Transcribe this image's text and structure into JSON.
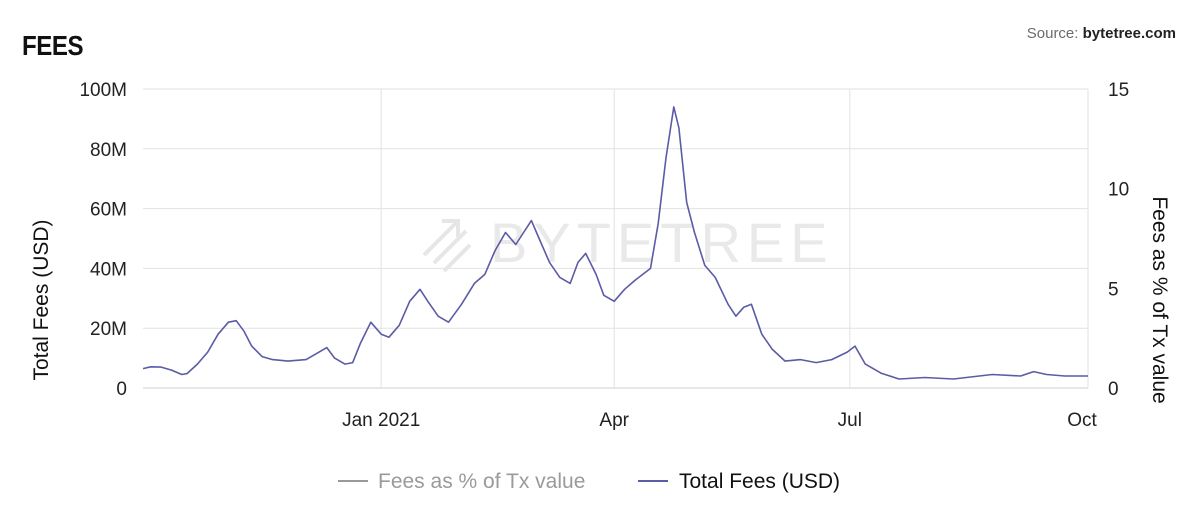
{
  "header": {
    "title": "FEES",
    "source_prefix": "Source: ",
    "source_name": "bytetree.com"
  },
  "watermark": "BYTETREE",
  "chart_data": {
    "type": "line",
    "yleft": {
      "label": "Total Fees (USD)",
      "ticks": [
        {
          "v": 0,
          "label": "0"
        },
        {
          "v": 20000000,
          "label": "20M"
        },
        {
          "v": 40000000,
          "label": "40M"
        },
        {
          "v": 60000000,
          "label": "60M"
        },
        {
          "v": 80000000,
          "label": "80M"
        },
        {
          "v": 100000000,
          "label": "100M"
        }
      ],
      "range": [
        0,
        100000000
      ]
    },
    "yright": {
      "label": "Fees as % of Tx value",
      "ticks": [
        {
          "v": 0,
          "label": "0"
        },
        {
          "v": 5,
          "label": "5"
        },
        {
          "v": 10,
          "label": "10"
        },
        {
          "v": 15,
          "label": "15"
        }
      ],
      "range": [
        0,
        15
      ]
    },
    "xaxis": {
      "range": [
        "2020-10-01",
        "2021-10-01"
      ],
      "ticks": [
        {
          "date": "2021-01-01",
          "label": "Jan 2021"
        },
        {
          "date": "2021-04-01",
          "label": "Apr"
        },
        {
          "date": "2021-07-01",
          "label": "Jul"
        },
        {
          "date": "2021-10-01",
          "label": "Oct"
        }
      ]
    },
    "grid": true,
    "legend_position": "bottom-center",
    "series": [
      {
        "name": "Fees as % of Tx value",
        "color": "#999999",
        "visible": false,
        "points": []
      },
      {
        "name": "Total Fees (USD)",
        "color": "#5b5ba6",
        "axis": "left",
        "points": [
          [
            "2020-10-01",
            6500000
          ],
          [
            "2020-10-04",
            7100000
          ],
          [
            "2020-10-08",
            7000000
          ],
          [
            "2020-10-12",
            6000000
          ],
          [
            "2020-10-16",
            4500000
          ],
          [
            "2020-10-18",
            4800000
          ],
          [
            "2020-10-22",
            8000000
          ],
          [
            "2020-10-26",
            12000000
          ],
          [
            "2020-10-30",
            18000000
          ],
          [
            "2020-11-03",
            22000000
          ],
          [
            "2020-11-06",
            22500000
          ],
          [
            "2020-11-09",
            19000000
          ],
          [
            "2020-11-12",
            14000000
          ],
          [
            "2020-11-16",
            10500000
          ],
          [
            "2020-11-20",
            9500000
          ],
          [
            "2020-11-26",
            9000000
          ],
          [
            "2020-12-03",
            9500000
          ],
          [
            "2020-12-08",
            12000000
          ],
          [
            "2020-12-11",
            13500000
          ],
          [
            "2020-12-14",
            10000000
          ],
          [
            "2020-12-18",
            8000000
          ],
          [
            "2020-12-21",
            8500000
          ],
          [
            "2020-12-24",
            15000000
          ],
          [
            "2020-12-28",
            22000000
          ],
          [
            "2021-01-01",
            18000000
          ],
          [
            "2021-01-04",
            17000000
          ],
          [
            "2021-01-08",
            21000000
          ],
          [
            "2021-01-12",
            29000000
          ],
          [
            "2021-01-16",
            33000000
          ],
          [
            "2021-01-19",
            29000000
          ],
          [
            "2021-01-23",
            24000000
          ],
          [
            "2021-01-27",
            22000000
          ],
          [
            "2021-02-01",
            28000000
          ],
          [
            "2021-02-06",
            35000000
          ],
          [
            "2021-02-10",
            38000000
          ],
          [
            "2021-02-14",
            46000000
          ],
          [
            "2021-02-18",
            52000000
          ],
          [
            "2021-02-22",
            48000000
          ],
          [
            "2021-02-25",
            52000000
          ],
          [
            "2021-02-28",
            56000000
          ],
          [
            "2021-03-03",
            50000000
          ],
          [
            "2021-03-07",
            42000000
          ],
          [
            "2021-03-11",
            37000000
          ],
          [
            "2021-03-15",
            35000000
          ],
          [
            "2021-03-18",
            42000000
          ],
          [
            "2021-03-21",
            45000000
          ],
          [
            "2021-03-25",
            38000000
          ],
          [
            "2021-03-28",
            31000000
          ],
          [
            "2021-04-01",
            29000000
          ],
          [
            "2021-04-05",
            33000000
          ],
          [
            "2021-04-09",
            36000000
          ],
          [
            "2021-04-12",
            38000000
          ],
          [
            "2021-04-15",
            40000000
          ],
          [
            "2021-04-18",
            55000000
          ],
          [
            "2021-04-21",
            77000000
          ],
          [
            "2021-04-24",
            94000000
          ],
          [
            "2021-04-26",
            87000000
          ],
          [
            "2021-04-29",
            62000000
          ],
          [
            "2021-05-02",
            52000000
          ],
          [
            "2021-05-06",
            41000000
          ],
          [
            "2021-05-10",
            37000000
          ],
          [
            "2021-05-15",
            28000000
          ],
          [
            "2021-05-18",
            24000000
          ],
          [
            "2021-05-21",
            27000000
          ],
          [
            "2021-05-24",
            28000000
          ],
          [
            "2021-05-28",
            18000000
          ],
          [
            "2021-06-01",
            13000000
          ],
          [
            "2021-06-06",
            9000000
          ],
          [
            "2021-06-12",
            9500000
          ],
          [
            "2021-06-18",
            8500000
          ],
          [
            "2021-06-24",
            9500000
          ],
          [
            "2021-06-30",
            12000000
          ],
          [
            "2021-07-03",
            14000000
          ],
          [
            "2021-07-07",
            8000000
          ],
          [
            "2021-07-13",
            5000000
          ],
          [
            "2021-07-20",
            3000000
          ],
          [
            "2021-07-30",
            3500000
          ],
          [
            "2021-08-10",
            3000000
          ],
          [
            "2021-08-25",
            4500000
          ],
          [
            "2021-09-05",
            4000000
          ],
          [
            "2021-09-10",
            5500000
          ],
          [
            "2021-09-15",
            4500000
          ],
          [
            "2021-09-22",
            4000000
          ],
          [
            "2021-10-01",
            4000000
          ]
        ]
      }
    ]
  }
}
